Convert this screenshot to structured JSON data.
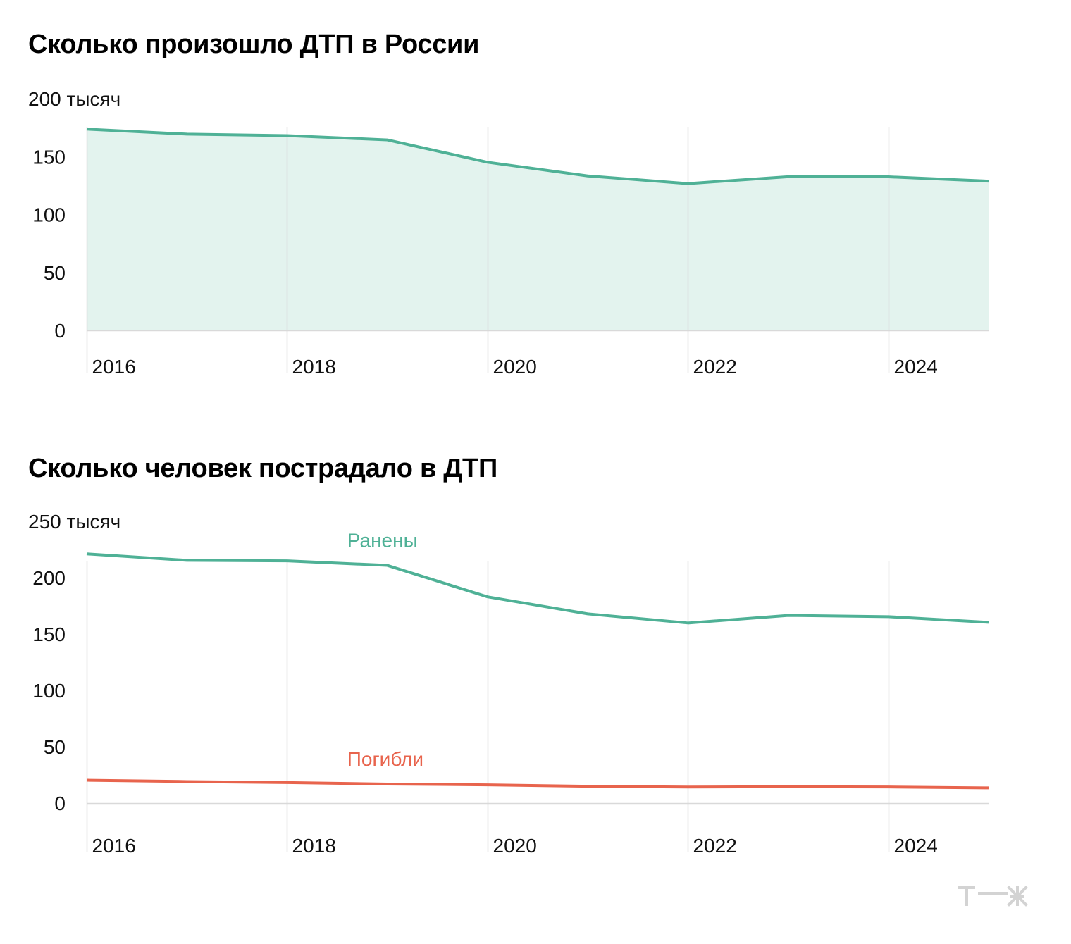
{
  "colors": {
    "green": "#4fb196",
    "green_fill": "#e3f3ee",
    "red": "#e8644d",
    "grid": "#d9d9d9",
    "logo": "#d3d3d3"
  },
  "logo": {
    "text": "т—ж"
  },
  "chart_data": [
    {
      "type": "area",
      "title": "Сколько произошло ДТП в России",
      "y_unit": "тысяч",
      "ylim": [
        0,
        200
      ],
      "y_ticks": [
        0,
        50,
        100,
        150,
        200
      ],
      "y_tick_labels": [
        "0",
        "50",
        "100",
        "150",
        "200 тысяч"
      ],
      "x_ticks": [
        "2016",
        "2018",
        "2020",
        "2022",
        "2024"
      ],
      "grid": "vertical at labeled years",
      "x": [
        2016,
        2017,
        2018,
        2019,
        2020,
        2021,
        2022,
        2023,
        2024,
        2025
      ],
      "series": [
        {
          "values": [
            173.7,
            169.4,
            168.1,
            164.4,
            145.1,
            133.3,
            126.7,
            132.6,
            132.5,
            128.8
          ],
          "color": "#4fb196"
        }
      ]
    },
    {
      "type": "line",
      "title": "Сколько человек пострадало в ДТП",
      "y_unit": "тысяч",
      "ylim": [
        0,
        250
      ],
      "y_ticks": [
        0,
        50,
        100,
        150,
        200,
        250
      ],
      "y_tick_labels": [
        "0",
        "50",
        "100",
        "150",
        "200",
        "250 тысяч"
      ],
      "x_ticks": [
        "2016",
        "2018",
        "2020",
        "2022",
        "2024"
      ],
      "grid": "vertical at labeled years",
      "x": [
        2016,
        2017,
        2018,
        2019,
        2020,
        2021,
        2022,
        2023,
        2024,
        2025
      ],
      "series": [
        {
          "name": "Ранены",
          "values": [
            221.1,
            215.4,
            214.9,
            210.9,
            183.0,
            167.9,
            159.8,
            166.5,
            165.4,
            160.4
          ],
          "color": "#4fb196"
        },
        {
          "name": "Погибли",
          "values": [
            20.3,
            19.1,
            18.2,
            16.9,
            16.2,
            14.9,
            14.2,
            14.5,
            14.3,
            13.5
          ],
          "color": "#e8644d"
        }
      ]
    }
  ]
}
